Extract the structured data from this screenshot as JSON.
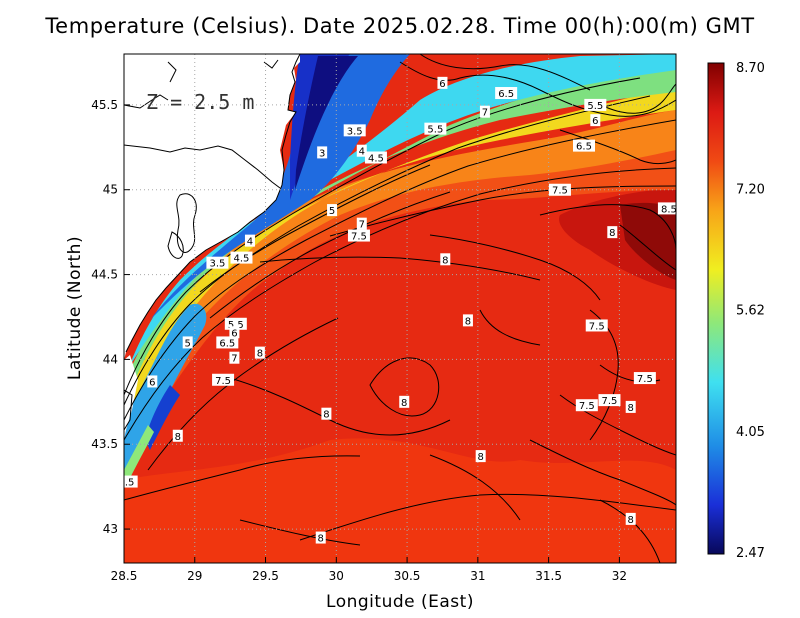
{
  "title": "Temperature (Celsius). Date 2025.02.28. Time 00(h):00(m) GMT",
  "depth_label": "Z = 2.5 m",
  "axes": {
    "xlabel": "Longitude (East)",
    "ylabel": "Latitude (North)",
    "xlim": [
      28.5,
      32.4
    ],
    "ylim": [
      42.8,
      45.8
    ],
    "xticks": [
      "28.5",
      "29",
      "29.5",
      "30",
      "30.5",
      "31",
      "31.5",
      "32"
    ],
    "yticks": [
      "43",
      "43.5",
      "44",
      "44.5",
      "45",
      "45.5"
    ],
    "grid": true
  },
  "colorbar": {
    "min": 2.47,
    "max": 8.7,
    "tick_labels": [
      "8.70",
      "7.20",
      "5.62",
      "4.05",
      "2.47"
    ],
    "colors": [
      "#08085a",
      "#1a2fd8",
      "#1f8de6",
      "#3fe0f0",
      "#8ee87a",
      "#f0ee20",
      "#f8a418",
      "#f04a14",
      "#dc1a14",
      "#800000"
    ]
  },
  "contour_labels": [
    {
      "text": "6",
      "lon": 30.75,
      "lat": 45.63
    },
    {
      "text": "6.5",
      "lon": 31.2,
      "lat": 45.57
    },
    {
      "text": "7",
      "lon": 31.05,
      "lat": 45.46
    },
    {
      "text": "5.5",
      "lon": 31.83,
      "lat": 45.5
    },
    {
      "text": "6",
      "lon": 31.83,
      "lat": 45.41
    },
    {
      "text": "5.5",
      "lon": 30.7,
      "lat": 45.36
    },
    {
      "text": "6.5",
      "lon": 31.75,
      "lat": 45.26
    },
    {
      "text": "3.5",
      "lon": 30.13,
      "lat": 45.35
    },
    {
      "text": "3",
      "lon": 29.9,
      "lat": 45.22
    },
    {
      "text": "4",
      "lon": 30.18,
      "lat": 45.23
    },
    {
      "text": "4.5",
      "lon": 30.28,
      "lat": 45.19
    },
    {
      "text": "7.5",
      "lon": 31.58,
      "lat": 45.0
    },
    {
      "text": "5",
      "lon": 29.97,
      "lat": 44.88
    },
    {
      "text": "7",
      "lon": 30.18,
      "lat": 44.8
    },
    {
      "text": "7.5",
      "lon": 30.16,
      "lat": 44.73
    },
    {
      "text": "8.5",
      "lon": 32.35,
      "lat": 44.89
    },
    {
      "text": "8",
      "lon": 31.95,
      "lat": 44.75
    },
    {
      "text": "4",
      "lon": 29.39,
      "lat": 44.7
    },
    {
      "text": "4.5",
      "lon": 29.33,
      "lat": 44.6
    },
    {
      "text": "3.5",
      "lon": 29.16,
      "lat": 44.57
    },
    {
      "text": "8",
      "lon": 30.77,
      "lat": 44.59
    },
    {
      "text": "8",
      "lon": 30.93,
      "lat": 44.23
    },
    {
      "text": "7.5",
      "lon": 31.84,
      "lat": 44.2
    },
    {
      "text": "5.5",
      "lon": 29.29,
      "lat": 44.21
    },
    {
      "text": "6",
      "lon": 29.28,
      "lat": 44.16
    },
    {
      "text": "5",
      "lon": 28.95,
      "lat": 44.1
    },
    {
      "text": "6.5",
      "lon": 29.23,
      "lat": 44.1
    },
    {
      "text": "8",
      "lon": 29.46,
      "lat": 44.04
    },
    {
      "text": "7",
      "lon": 29.28,
      "lat": 44.01
    },
    {
      "text": "6",
      "lon": 28.7,
      "lat": 43.87
    },
    {
      "text": "7.5",
      "lon": 29.2,
      "lat": 43.88
    },
    {
      "text": "8",
      "lon": 30.48,
      "lat": 43.75
    },
    {
      "text": "7.5",
      "lon": 32.18,
      "lat": 43.89
    },
    {
      "text": "7.5",
      "lon": 31.93,
      "lat": 43.76
    },
    {
      "text": "7.5",
      "lon": 31.77,
      "lat": 43.73
    },
    {
      "text": "8",
      "lon": 32.08,
      "lat": 43.72
    },
    {
      "text": "8",
      "lon": 29.93,
      "lat": 43.68
    },
    {
      "text": "8",
      "lon": 28.88,
      "lat": 43.55
    },
    {
      "text": "8",
      "lon": 31.02,
      "lat": 43.43
    },
    {
      "text": ".5",
      "lon": 28.54,
      "lat": 43.28
    },
    {
      "text": "8",
      "lon": 32.08,
      "lat": 43.06
    },
    {
      "text": "8",
      "lon": 29.89,
      "lat": 42.95
    }
  ]
}
